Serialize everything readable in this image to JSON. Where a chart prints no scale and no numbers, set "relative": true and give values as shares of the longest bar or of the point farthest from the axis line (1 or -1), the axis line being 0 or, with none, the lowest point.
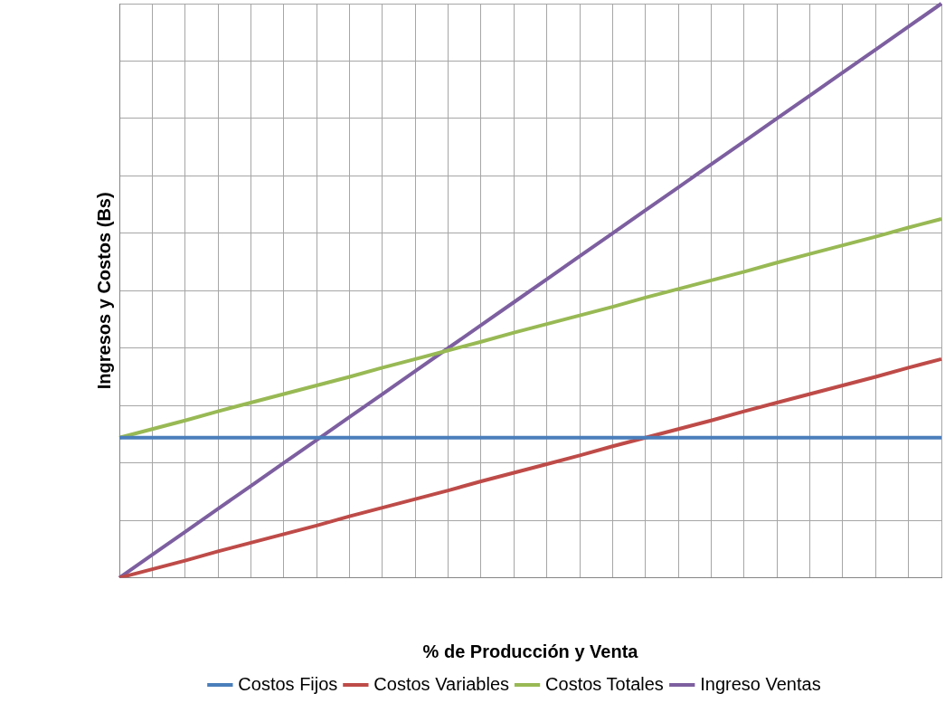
{
  "chart_data": {
    "type": "line",
    "relative": true,
    "xlabel": "% de Producción y Venta",
    "ylabel": "Ingresos y Costos (Bs)",
    "grid": true,
    "legend": "bottom",
    "marker": "none",
    "line_style": "solid",
    "categories": [
      null,
      null,
      null,
      null,
      null,
      null,
      null,
      null,
      null,
      null,
      null,
      null,
      null,
      null,
      null,
      null,
      null,
      null,
      null,
      null,
      null,
      null,
      null,
      null,
      null,
      null
    ],
    "series": [
      {
        "name": "Costos Fijos",
        "color": "#4a7ebb",
        "values": [
          0.244,
          0.244,
          0.244,
          0.244,
          0.244,
          0.244,
          0.244,
          0.244,
          0.244,
          0.244,
          0.244,
          0.244,
          0.244,
          0.244,
          0.244,
          0.244,
          0.244,
          0.244,
          0.244,
          0.244,
          0.244,
          0.244,
          0.244,
          0.244,
          0.244,
          0.244
        ]
      },
      {
        "name": "Costos Variables",
        "color": "#be4b48",
        "values": [
          0,
          0.015,
          0.03,
          0.046,
          0.061,
          0.076,
          0.091,
          0.107,
          0.122,
          0.137,
          0.152,
          0.168,
          0.183,
          0.198,
          0.213,
          0.229,
          0.244,
          0.259,
          0.274,
          0.29,
          0.305,
          0.32,
          0.335,
          0.35,
          0.366,
          0.381
        ]
      },
      {
        "name": "Costos Totales",
        "color": "#98b954",
        "values": [
          0.244,
          0.259,
          0.274,
          0.29,
          0.305,
          0.32,
          0.335,
          0.35,
          0.366,
          0.381,
          0.396,
          0.411,
          0.427,
          0.442,
          0.457,
          0.472,
          0.488,
          0.503,
          0.518,
          0.533,
          0.549,
          0.564,
          0.579,
          0.594,
          0.61,
          0.625
        ]
      },
      {
        "name": "Ingreso Ventas",
        "color": "#7d5fa0",
        "values": [
          0,
          0.04,
          0.08,
          0.12,
          0.16,
          0.2,
          0.24,
          0.28,
          0.32,
          0.36,
          0.4,
          0.44,
          0.48,
          0.52,
          0.56,
          0.6,
          0.64,
          0.68,
          0.72,
          0.76,
          0.8,
          0.84,
          0.88,
          0.92,
          0.96,
          1
        ]
      }
    ]
  }
}
